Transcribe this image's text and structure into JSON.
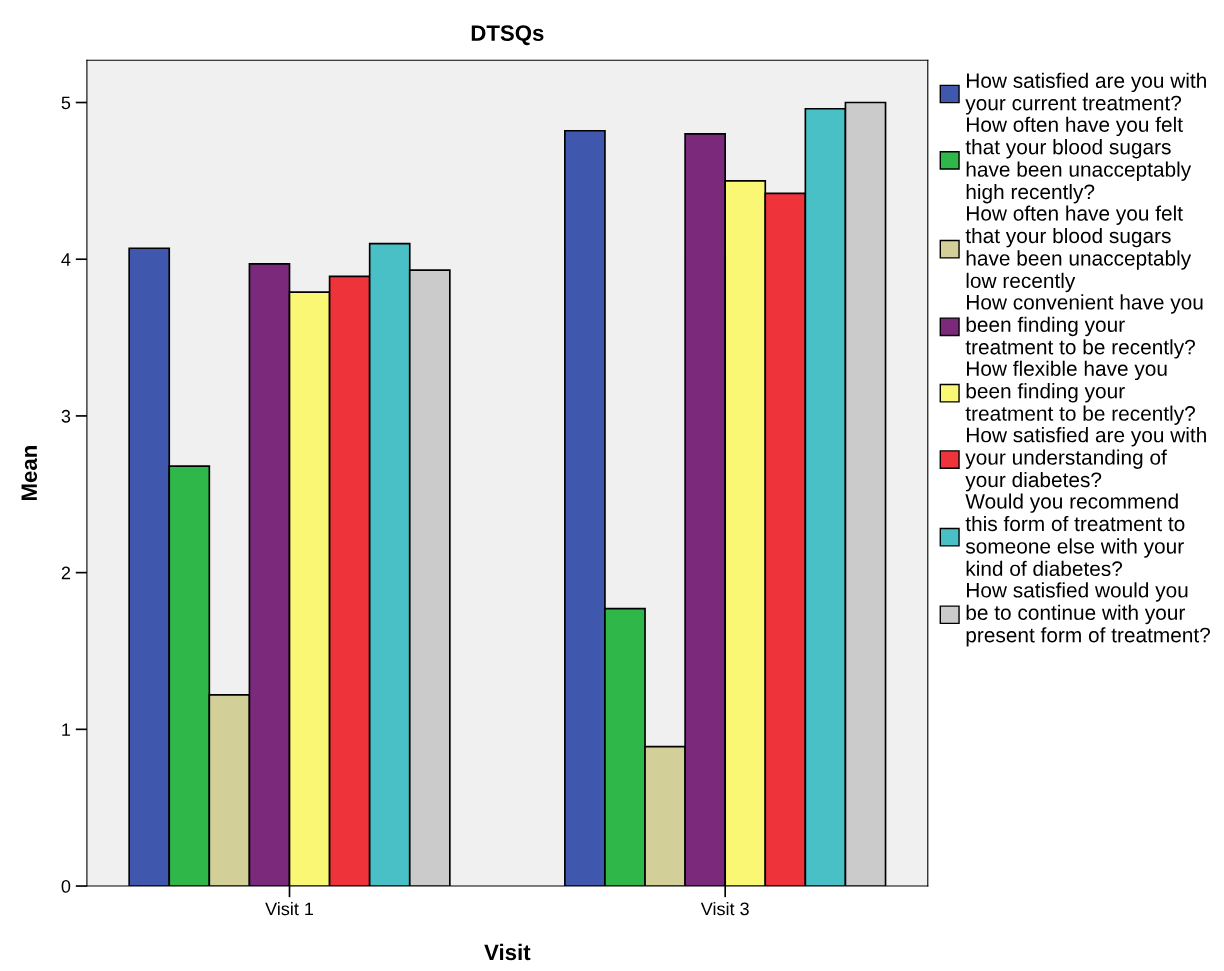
{
  "chart_data": {
    "type": "bar",
    "title": "DTSQs",
    "xlabel": "Visit",
    "ylabel": "Mean",
    "categories": [
      "Visit 1",
      "Visit 3"
    ],
    "series": [
      {
        "name": "How satisfied are you with\nyour current treatment?",
        "color": "#3f58ad",
        "values": [
          4.07,
          4.82
        ]
      },
      {
        "name": "How often have you felt\nthat your blood sugars\nhave been unacceptably\nhigh recently?",
        "color": "#2fb74a",
        "values": [
          2.68,
          1.77
        ]
      },
      {
        "name": "How often have you felt\nthat your blood sugars\nhave been unacceptably\nlow recently",
        "color": "#d3cf98",
        "values": [
          1.22,
          0.89
        ]
      },
      {
        "name": "How convenient have you\nbeen finding your\ntreatment to be recently?",
        "color": "#7b2a7b",
        "values": [
          3.97,
          4.8
        ]
      },
      {
        "name": "How flexible have you\nbeen finding your\ntreatment to be recently?",
        "color": "#f9f774",
        "values": [
          3.79,
          4.5
        ]
      },
      {
        "name": "How satisfied are you with\nyour understanding of\nyour diabetes?",
        "color": "#ef333a",
        "values": [
          3.89,
          4.42
        ]
      },
      {
        "name": "Would you recommend\nthis form of treatment to\nsomeone else with your\nkind of diabetes?",
        "color": "#48c0c6",
        "values": [
          4.1,
          4.96
        ]
      },
      {
        "name": "How satisfied would you\nbe to continue with your\npresent form of treatment?",
        "color": "#cbcbcb",
        "values": [
          3.93,
          5.0
        ]
      }
    ],
    "ylim": [
      0,
      5.27
    ],
    "yticks": [
      0,
      1,
      2,
      3,
      4,
      5
    ],
    "grid": false,
    "legend": "right"
  }
}
